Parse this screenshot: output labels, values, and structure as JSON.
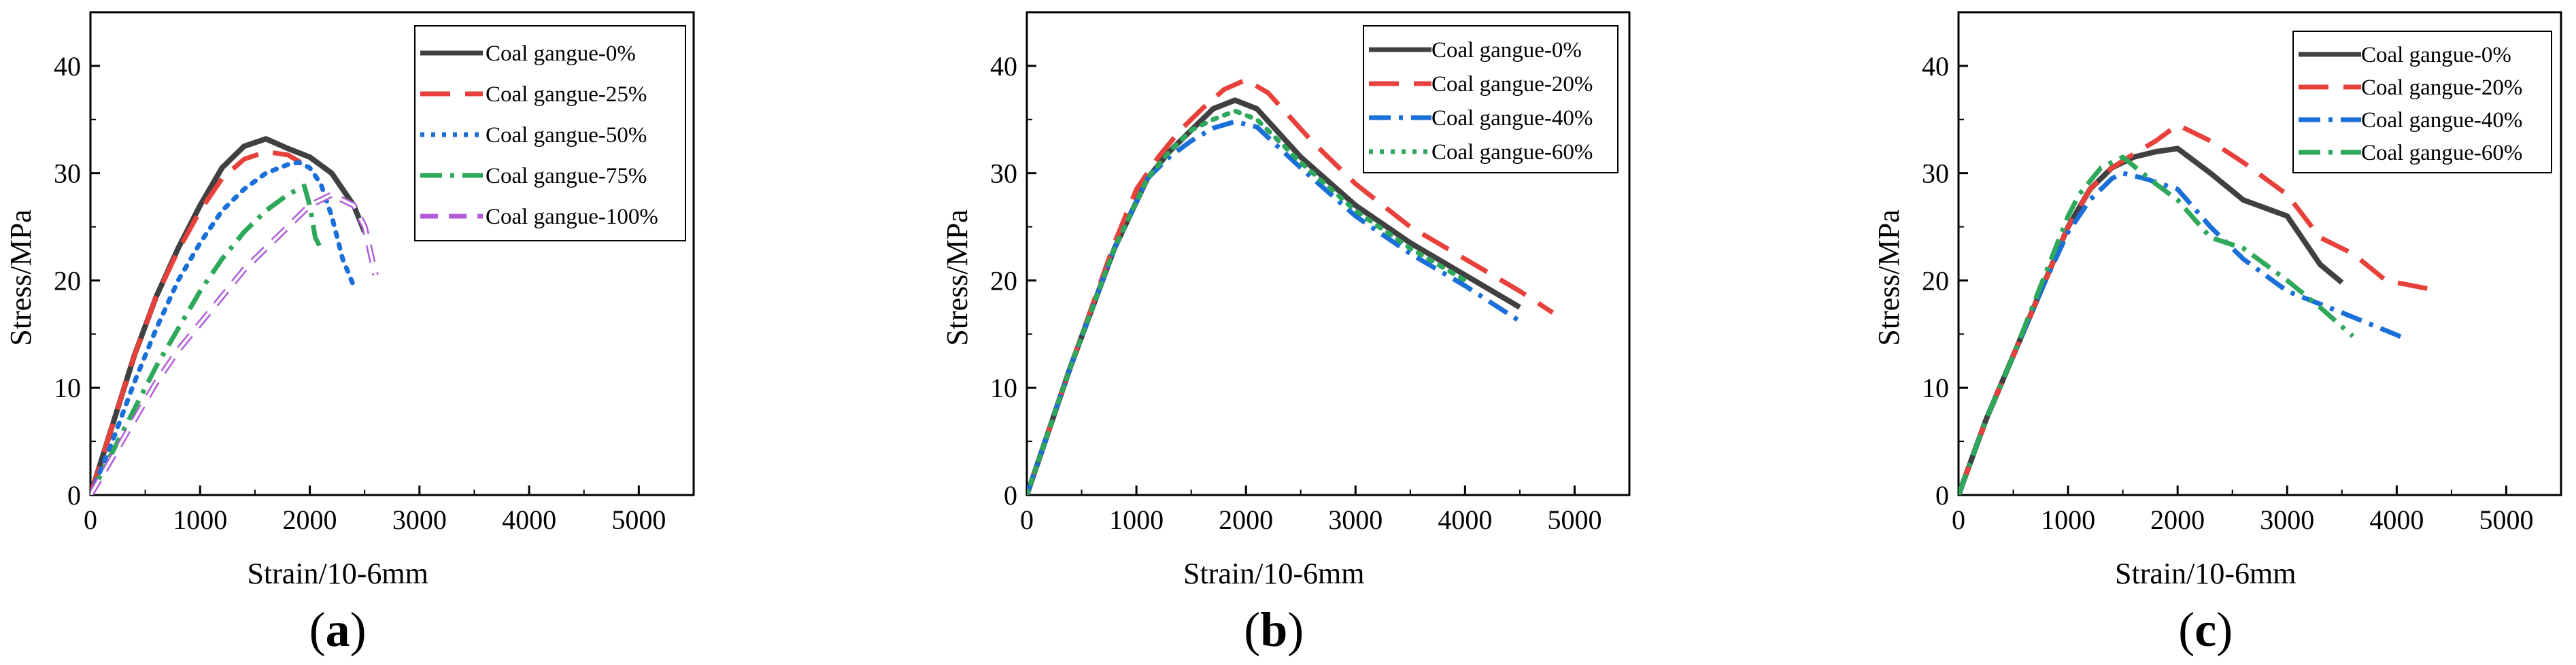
{
  "chart_data": [
    {
      "type": "line",
      "panel_label": "(a)",
      "panel_letter": "a",
      "xlabel": "Strain/10-6mm",
      "ylabel": "Stress/MPa",
      "xlim": [
        0,
        5500
      ],
      "ylim": [
        0,
        45
      ],
      "xticks": [
        0,
        1000,
        2000,
        3000,
        4000,
        5000
      ],
      "yticks": [
        0,
        10,
        20,
        30,
        40
      ],
      "legend_position": "top-right",
      "series": [
        {
          "name": "Coal gangue-0%",
          "color": "#404040",
          "dash": "solid",
          "x": [
            0,
            200,
            400,
            600,
            800,
            1000,
            1200,
            1400,
            1600,
            1800,
            2000,
            2200,
            2400,
            2500
          ],
          "y": [
            0,
            6.5,
            13,
            18.5,
            23,
            27,
            30.5,
            32.5,
            33.2,
            32.3,
            31.5,
            30,
            27,
            24.5
          ]
        },
        {
          "name": "Coal gangue-25%",
          "color": "#e8403a",
          "dash": "long-dash",
          "x": [
            0,
            200,
            400,
            600,
            800,
            1000,
            1200,
            1400,
            1600,
            1800,
            2000
          ],
          "y": [
            0,
            6.5,
            13,
            18.5,
            22.8,
            26.5,
            29.5,
            31.3,
            32,
            31.7,
            30.5
          ]
        },
        {
          "name": "Coal gangue-50%",
          "color": "#1a6fd8",
          "dash": "dot",
          "x": [
            0,
            200,
            400,
            600,
            800,
            1000,
            1200,
            1400,
            1600,
            1800,
            1900,
            2000,
            2100,
            2200,
            2300,
            2400
          ],
          "y": [
            0,
            5,
            10.5,
            15.5,
            20,
            23.5,
            26.5,
            28.5,
            30,
            30.8,
            31,
            30.5,
            29,
            26,
            22,
            19.5
          ]
        },
        {
          "name": "Coal gangue-75%",
          "color": "#2ea85a",
          "dash": "dash-dot",
          "x": [
            0,
            200,
            400,
            600,
            800,
            1000,
            1200,
            1400,
            1600,
            1800,
            1950,
            2000,
            2050,
            2100
          ],
          "y": [
            0,
            4,
            8,
            12,
            15.5,
            19,
            22,
            24.5,
            26.5,
            28,
            28.8,
            27,
            24,
            23
          ]
        },
        {
          "name": "Coal gangue-100%",
          "color": "#b05cd6",
          "dash": "open-dash",
          "x": [
            0,
            200,
            400,
            600,
            800,
            1000,
            1200,
            1400,
            1600,
            1800,
            2000,
            2200,
            2400,
            2500,
            2600
          ],
          "y": [
            0,
            3.5,
            7,
            10.5,
            13.5,
            16,
            18.5,
            21,
            23,
            25,
            27,
            28,
            27,
            25,
            20.5
          ]
        }
      ]
    },
    {
      "type": "line",
      "panel_label": "(b)",
      "panel_letter": "b",
      "xlabel": "Strain/10-6mm",
      "ylabel": "Stress/MPa",
      "xlim": [
        0,
        5500
      ],
      "ylim": [
        0,
        45
      ],
      "xticks": [
        0,
        1000,
        2000,
        3000,
        4000,
        5000
      ],
      "yticks": [
        0,
        10,
        20,
        30,
        40
      ],
      "legend_position": "top-right",
      "series": [
        {
          "name": "Coal gangue-0%",
          "color": "#404040",
          "dash": "solid",
          "x": [
            0,
            400,
            800,
            1100,
            1300,
            1500,
            1700,
            1900,
            2100,
            2500,
            3000,
            3500,
            4000,
            4500
          ],
          "y": [
            0,
            12,
            23,
            29.5,
            32,
            34,
            36,
            36.8,
            36,
            31.5,
            27,
            23.5,
            20.5,
            17.5
          ]
        },
        {
          "name": "Coal gangue-20%",
          "color": "#e8403a",
          "dash": "long-dash",
          "x": [
            0,
            400,
            800,
            1000,
            1200,
            1400,
            1600,
            1800,
            2000,
            2200,
            2600,
            3000,
            3500,
            4000,
            4500,
            4800
          ],
          "y": [
            0,
            12,
            23.5,
            28.5,
            31.5,
            34,
            36,
            37.8,
            38.7,
            37.5,
            33,
            29,
            25,
            22,
            19,
            17
          ]
        },
        {
          "name": "Coal gangue-40%",
          "color": "#1a6fd8",
          "dash": "dash-dot",
          "x": [
            0,
            400,
            800,
            1100,
            1300,
            1500,
            1700,
            1900,
            2100,
            2500,
            3000,
            3500,
            4000,
            4500
          ],
          "y": [
            0,
            12,
            23,
            29.5,
            31.5,
            33,
            34.2,
            34.8,
            34.3,
            30.5,
            26,
            22.5,
            19.5,
            16.2
          ]
        },
        {
          "name": "Coal gangue-60%",
          "color": "#2ea85a",
          "dash": "dot",
          "x": [
            0,
            400,
            800,
            1100,
            1300,
            1500,
            1700,
            1900,
            2100,
            2500,
            3000,
            3500,
            4000
          ],
          "y": [
            0,
            12,
            23,
            29.5,
            32,
            34,
            35,
            35.8,
            35,
            31,
            26.5,
            23,
            20
          ]
        }
      ]
    },
    {
      "type": "line",
      "panel_label": "(c)",
      "panel_letter": "c",
      "xlabel": "Strain/10-6mm",
      "ylabel": "Stress/MPa",
      "xlim": [
        0,
        5500
      ],
      "ylim": [
        0,
        45
      ],
      "xticks": [
        0,
        1000,
        2000,
        3000,
        4000,
        5000
      ],
      "yticks": [
        0,
        10,
        20,
        30,
        40
      ],
      "legend_position": "top-right",
      "series": [
        {
          "name": "Coal gangue-0%",
          "color": "#404040",
          "dash": "solid",
          "x": [
            0,
            250,
            500,
            750,
            1000,
            1200,
            1400,
            1600,
            1800,
            2000,
            2300,
            2600,
            3000,
            3200,
            3300,
            3500
          ],
          "y": [
            0,
            7,
            13,
            19,
            25,
            28.5,
            30.5,
            31.5,
            32,
            32.3,
            30,
            27.5,
            26,
            23,
            21.5,
            19.8
          ]
        },
        {
          "name": "Coal gangue-20%",
          "color": "#e8403a",
          "dash": "long-dash",
          "x": [
            0,
            250,
            500,
            750,
            1000,
            1200,
            1400,
            1600,
            1800,
            2000,
            2300,
            2600,
            3000,
            3300,
            3600,
            3900,
            4400
          ],
          "y": [
            0,
            7,
            13,
            19,
            25,
            28.5,
            30.5,
            31.8,
            33,
            34.5,
            33,
            31,
            28,
            24,
            22.5,
            20,
            19
          ]
        },
        {
          "name": "Coal gangue-40%",
          "color": "#1a6fd8",
          "dash": "dash-dot",
          "x": [
            0,
            250,
            500,
            750,
            1000,
            1200,
            1400,
            1500,
            1700,
            2000,
            2300,
            2600,
            3000,
            3500,
            4100
          ],
          "y": [
            0,
            7,
            13,
            19,
            24.5,
            27.5,
            29.5,
            30,
            29.5,
            28.5,
            25,
            22,
            19,
            17,
            14.5
          ]
        },
        {
          "name": "Coal gangue-60%",
          "color": "#2ea85a",
          "dash": "dash-dot",
          "x": [
            0,
            250,
            500,
            750,
            1000,
            1100,
            1300,
            1500,
            1800,
            2000,
            2300,
            2600,
            3000,
            3300,
            3600
          ],
          "y": [
            0,
            7,
            13,
            19.5,
            26,
            28,
            30.5,
            31.5,
            29,
            27.5,
            24,
            23,
            20,
            17.5,
            14.8
          ]
        }
      ]
    }
  ]
}
